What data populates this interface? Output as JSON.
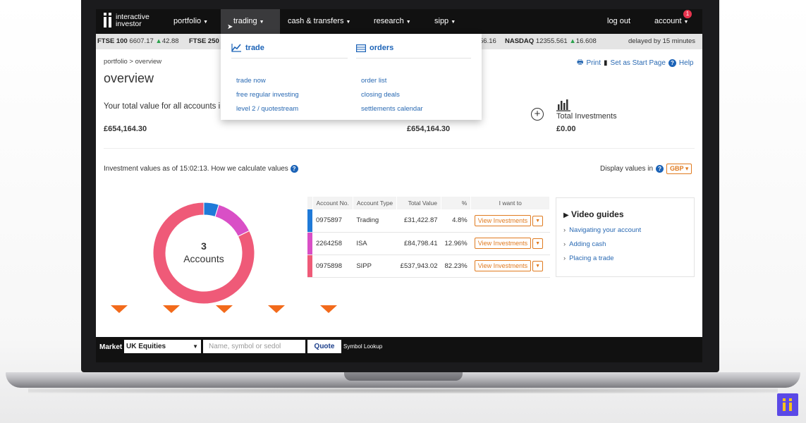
{
  "brand": {
    "line1": "interactive",
    "line2": "investor"
  },
  "nav": {
    "items": [
      {
        "label": "portfolio",
        "active": false
      },
      {
        "label": "trading",
        "active": true
      },
      {
        "label": "cash & transfers",
        "active": false
      },
      {
        "label": "research",
        "active": false
      },
      {
        "label": "sipp",
        "active": false
      }
    ],
    "logout": "log out",
    "account": "account",
    "account_badge": "1"
  },
  "ticker": {
    "items": [
      {
        "name": "FTSE 100",
        "value": "6607.17",
        "change": "42.88"
      },
      {
        "name": "FTSE 250",
        "value": "",
        "change": ""
      },
      {
        "name": "",
        "value": "56.16",
        "change": ""
      },
      {
        "name": "NASDAQ",
        "value": "12355.561",
        "change": "16.608"
      }
    ],
    "delayed": "delayed by 15 minutes"
  },
  "dropdown": {
    "trade": {
      "heading": "trade",
      "links": [
        "trade now",
        "free regular investing",
        "level 2 / quotestream"
      ]
    },
    "orders": {
      "heading": "orders",
      "links": [
        "order list",
        "closing deals",
        "settlements calendar"
      ]
    }
  },
  "page": {
    "breadcrumb": "portfolio > overview",
    "title": "overview",
    "tools": {
      "print": "Print",
      "start_page": "Set as Start Page",
      "help": "Help"
    },
    "total_text": "Your total value for all accounts i",
    "total_value": "£654,164.30",
    "total_value_2": "£654,164.30",
    "total_investments_label": "Total Investments",
    "total_investments_value": "£0.00",
    "values_as_of": "Investment values as of 15:02:13. How we calculate values",
    "display_values_in": "Display values in",
    "currency": "GBP"
  },
  "donut": {
    "count": "3",
    "label": "Accounts",
    "segments": [
      {
        "account": "0975897",
        "percent": 4.8,
        "color": "#1f7ad8"
      },
      {
        "account": "2264258",
        "percent": 12.96,
        "color": "#d94fc6"
      },
      {
        "account": "0975898",
        "percent": 82.23,
        "color": "#ef5a78"
      }
    ]
  },
  "table": {
    "headers": [
      "Account No.",
      "Account Type",
      "Total Value",
      "%",
      "I want to"
    ],
    "rows": [
      {
        "account_no": "0975897",
        "type": "Trading",
        "value": "£31,422.87",
        "percent": "4.8%",
        "action": "View Investments",
        "color": "#1f7ad8"
      },
      {
        "account_no": "2264258",
        "type": "ISA",
        "value": "£84,798.41",
        "percent": "12.96%",
        "action": "View Investments",
        "color": "#d94fc6"
      },
      {
        "account_no": "0975898",
        "type": "SIPP",
        "value": "£537,943.02",
        "percent": "82.23%",
        "action": "View Investments",
        "color": "#ef5a78"
      }
    ]
  },
  "guides": {
    "title": "Video guides",
    "links": [
      "Navigating your account",
      "Adding cash",
      "Placing a trade"
    ]
  },
  "quote_bar": {
    "market_label": "Market",
    "market_value": "UK Equities",
    "placeholder": "Name, symbol or sedol",
    "quote_button": "Quote",
    "lookup": "Symbol Lookup"
  }
}
